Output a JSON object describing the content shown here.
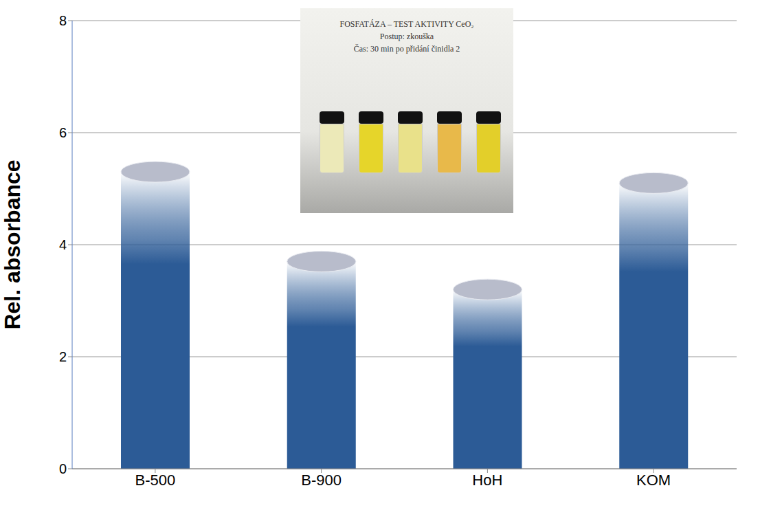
{
  "chart_data": {
    "type": "bar",
    "y_label": "Rel. absorbance",
    "categories": [
      "B-500",
      "B-900",
      "HoH",
      "KOM"
    ],
    "values": [
      5.3,
      3.7,
      3.2,
      5.1
    ],
    "color": "#2c5b96",
    "ylim": [
      0,
      8
    ],
    "yticks": [
      0,
      2,
      4,
      6,
      8
    ],
    "grid": true,
    "annotations": [
      "FOSFATÁZA – TEST AKTIVITY CeO₂",
      "Postup: zkouška",
      "Čas: 30 min po přidání činidla 2"
    ]
  }
}
